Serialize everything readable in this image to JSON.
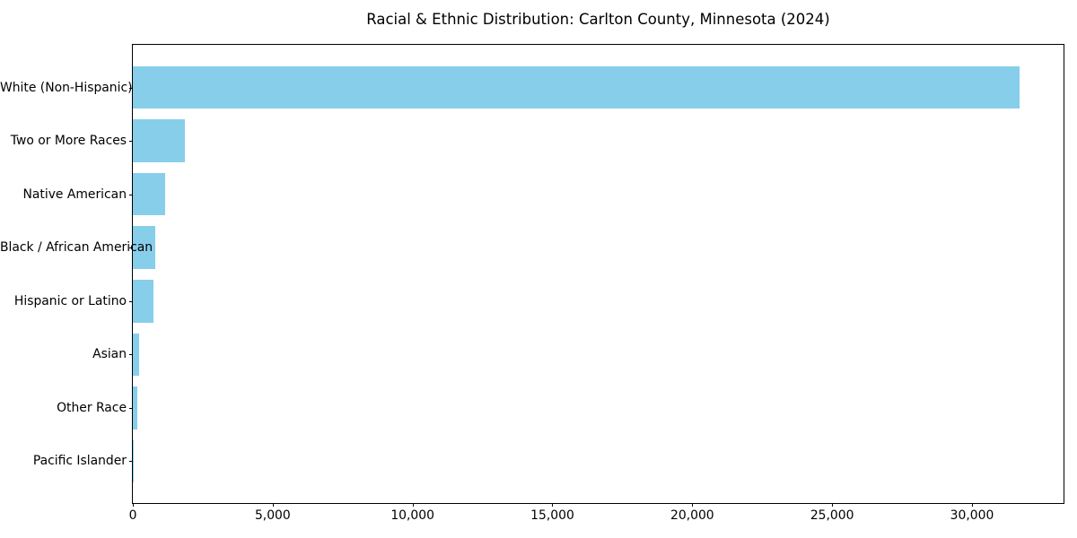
{
  "chart_data": {
    "type": "bar",
    "orientation": "horizontal",
    "title": "Racial & Ethnic Distribution: Carlton County, Minnesota (2024)",
    "categories": [
      "White (Non-Hispanic)",
      "Two or More Races",
      "Native American",
      "Black / African American",
      "Hispanic or Latino",
      "Asian",
      "Other Race",
      "Pacific Islander"
    ],
    "values": [
      31700,
      1850,
      1150,
      800,
      730,
      230,
      170,
      10
    ],
    "xlabel": "",
    "ylabel": "",
    "xlim": [
      0,
      33273
    ],
    "x_ticks": [
      0,
      5000,
      10000,
      15000,
      20000,
      25000,
      30000
    ],
    "x_tick_labels": [
      "0",
      "5,000",
      "10,000",
      "15,000",
      "20,000",
      "25,000",
      "30,000"
    ],
    "bar_color": "#87CEEB",
    "spine_color": "#000000",
    "background_color": "#ffffff",
    "grid": false,
    "legend_position": "none"
  }
}
